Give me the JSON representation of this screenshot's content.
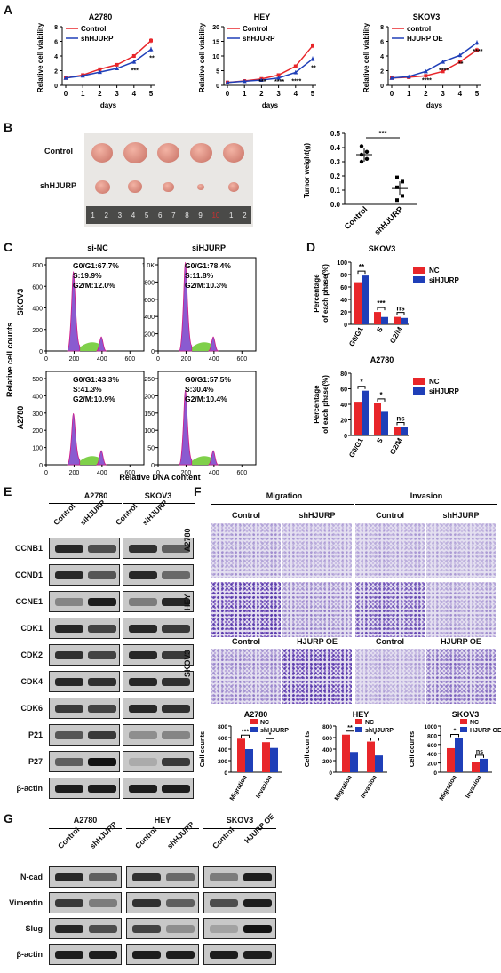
{
  "panels": {
    "a": "A",
    "b": "B",
    "c": "C",
    "d": "D",
    "e": "E",
    "f": "F",
    "g": "G"
  },
  "panel_a": {
    "ylabel": "Relative cell viability",
    "xlabel": "days",
    "x_ticks": [
      "0",
      "1",
      "2",
      "3",
      "4",
      "5"
    ],
    "y_ticks": [
      "0",
      "2",
      "4",
      "6",
      "8"
    ],
    "y_ticks_hey": [
      "0",
      "5",
      "10",
      "15",
      "20"
    ],
    "charts": [
      {
        "title": "A2780",
        "legend": [
          "Control",
          "shHJURP"
        ],
        "sig": [
          "***",
          "**"
        ]
      },
      {
        "title": "HEY",
        "legend": [
          "Control",
          "shHJURP"
        ],
        "sig": [
          "***",
          "****",
          "****",
          "**"
        ]
      },
      {
        "title": "SKOV3",
        "legend": [
          "control",
          "HJURP OE"
        ],
        "sig": [
          "****",
          "****",
          "**",
          "****"
        ]
      }
    ]
  },
  "panel_b": {
    "row_labels": [
      "Control",
      "shHJURP"
    ],
    "ruler": [
      "1",
      "2",
      "3",
      "4",
      "5",
      "6",
      "7",
      "8",
      "9",
      "10",
      "1",
      "2"
    ],
    "ylabel": "Tumor weight(g)",
    "y_ticks": [
      "0.0",
      "0.1",
      "0.2",
      "0.3",
      "0.4",
      "0.5"
    ],
    "categories": [
      "Control",
      "shHJURP"
    ],
    "sig": "***"
  },
  "panel_c": {
    "cols": [
      "si-NC",
      "siHJURP"
    ],
    "rows": [
      "SKOV3",
      "A2780"
    ],
    "ylabel": "Relative cell counts",
    "xlabel": "Relative DNA content",
    "x_ticks": [
      "0",
      "200",
      "400",
      "600"
    ],
    "y_ticks": [
      [
        "0",
        "200",
        "400",
        "600",
        "800"
      ],
      [
        "0",
        "200",
        "400",
        "600",
        "800",
        "1.0K"
      ],
      [
        "0",
        "100",
        "200",
        "300",
        "400",
        "500"
      ],
      [
        "0",
        "50",
        "100",
        "150",
        "200",
        "250"
      ]
    ],
    "stats": [
      [
        "G0/G1:67.7%",
        "S:19.9%",
        "G2/M:12.0%"
      ],
      [
        "G0/G1:78.4%",
        "S:11.8%",
        "G2/M:10.3%"
      ],
      [
        "G0/G1:43.3%",
        "S:41.3%",
        "G2/M:10.9%"
      ],
      [
        "G0/G1:57.5%",
        "S:30.4%",
        "G2/M:10.4%"
      ]
    ]
  },
  "panel_d": {
    "ylabel1": "Percentage",
    "ylabel2": "of each phase(%)",
    "legend": [
      "NC",
      "siHJURP"
    ],
    "categories": [
      "G0/G1",
      "S",
      "G2/M"
    ],
    "charts": [
      {
        "title": "SKOV3",
        "y_ticks": [
          "0",
          "20",
          "40",
          "60",
          "80",
          "100"
        ],
        "sig": [
          "**",
          "***",
          "ns"
        ]
      },
      {
        "title": "A2780",
        "y_ticks": [
          "0",
          "20",
          "40",
          "60",
          "80"
        ],
        "sig": [
          "*",
          "*",
          "ns"
        ]
      }
    ]
  },
  "panel_e": {
    "groups": [
      "A2780",
      "SKOV3"
    ],
    "lanes": [
      "Control",
      "siHJURP",
      "Control",
      "siHJURP"
    ],
    "proteins": [
      "CCNB1",
      "CCND1",
      "CCNE1",
      "CDK1",
      "CDK2",
      "CDK4",
      "CDK6",
      "P21",
      "P27",
      "β-actin"
    ]
  },
  "panel_f": {
    "sections": [
      "Migration",
      "Invasion"
    ],
    "col_labels_top": [
      "Control",
      "shHJURP",
      "Control",
      "shHJURP"
    ],
    "col_labels_bottom": [
      "Control",
      "HJURP OE",
      "Control",
      "HJURP OE"
    ],
    "row_labels": [
      "A2780",
      "HEY",
      "SKOV3"
    ],
    "ylabel": "Cell counts",
    "categories": [
      "Migration",
      "Invasion"
    ],
    "charts": [
      {
        "title": "A2780",
        "legend": [
          "NC",
          "shHJURP"
        ],
        "y_ticks": [
          "0",
          "200",
          "400",
          "600",
          "800"
        ],
        "sig": [
          "***",
          "*"
        ]
      },
      {
        "title": "HEY",
        "legend": [
          "NC",
          "shHJURP"
        ],
        "y_ticks": [
          "0",
          "200",
          "400",
          "600",
          "800"
        ],
        "sig": [
          "**",
          "*"
        ]
      },
      {
        "title": "SKOV3",
        "legend": [
          "NC",
          "HJURP OE"
        ],
        "y_ticks": [
          "0",
          "200",
          "400",
          "600",
          "800",
          "1000"
        ],
        "sig": [
          "*",
          "ns"
        ]
      }
    ]
  },
  "panel_g": {
    "groups": [
      "A2780",
      "HEY",
      "SKOV3"
    ],
    "lanes": [
      "Control",
      "shHJURP",
      "Control",
      "shHJURP",
      "Control",
      "HJURP OE"
    ],
    "proteins": [
      "N-cad",
      "Vimentin",
      "Slug",
      "β-actin"
    ]
  },
  "colors": {
    "control": "#e8262a",
    "treated": "#1f3fb8",
    "purple": "#8a5bd0",
    "green": "#7fd04a"
  },
  "chart_data": [
    {
      "type": "line",
      "title": "A2780",
      "xlabel": "days",
      "ylabel": "Relative cell viability",
      "x": [
        0,
        1,
        2,
        3,
        4,
        5
      ],
      "ylim": [
        0,
        8
      ],
      "series": [
        {
          "name": "Control",
          "values": [
            1.0,
            1.4,
            2.2,
            2.8,
            4.0,
            6.1
          ]
        },
        {
          "name": "shHJURP",
          "values": [
            1.0,
            1.3,
            1.8,
            2.3,
            3.2,
            4.9
          ]
        }
      ]
    },
    {
      "type": "line",
      "title": "HEY",
      "xlabel": "days",
      "ylabel": "Relative cell viability",
      "x": [
        0,
        1,
        2,
        3,
        4,
        5
      ],
      "ylim": [
        0,
        20
      ],
      "series": [
        {
          "name": "Control",
          "values": [
            1.0,
            1.5,
            2.2,
            3.5,
            6.5,
            13.5
          ]
        },
        {
          "name": "shHJURP",
          "values": [
            1.0,
            1.4,
            1.8,
            2.5,
            4.4,
            9.0
          ]
        }
      ]
    },
    {
      "type": "line",
      "title": "SKOV3",
      "xlabel": "days",
      "ylabel": "Relative cell viability",
      "x": [
        0,
        1,
        2,
        3,
        4,
        5
      ],
      "ylim": [
        0,
        8
      ],
      "series": [
        {
          "name": "control",
          "values": [
            1.0,
            1.1,
            1.3,
            1.9,
            3.2,
            4.8
          ]
        },
        {
          "name": "HJURP OE",
          "values": [
            1.0,
            1.2,
            1.9,
            3.2,
            4.1,
            5.8
          ]
        }
      ]
    },
    {
      "type": "scatter",
      "ylabel": "Tumor weight(g)",
      "categories": [
        "Control",
        "shHJURP"
      ],
      "ylim": [
        0,
        0.5
      ],
      "series": [
        {
          "name": "Control",
          "values": [
            0.41,
            0.37,
            0.35,
            0.32,
            0.3
          ]
        },
        {
          "name": "shHJURP",
          "values": [
            0.19,
            0.16,
            0.12,
            0.06,
            0.03
          ]
        }
      ]
    },
    {
      "type": "bar",
      "title": "SKOV3",
      "ylabel": "Percentage of each phase(%)",
      "categories": [
        "G0/G1",
        "S",
        "G2/M"
      ],
      "ylim": [
        0,
        100
      ],
      "series": [
        {
          "name": "NC",
          "values": [
            67.7,
            19.9,
            12.0
          ]
        },
        {
          "name": "siHJURP",
          "values": [
            78.4,
            11.8,
            10.3
          ]
        }
      ]
    },
    {
      "type": "bar",
      "title": "A2780",
      "ylabel": "Percentage of each phase(%)",
      "categories": [
        "G0/G1",
        "S",
        "G2/M"
      ],
      "ylim": [
        0,
        80
      ],
      "series": [
        {
          "name": "NC",
          "values": [
            43.3,
            41.3,
            10.9
          ]
        },
        {
          "name": "siHJURP",
          "values": [
            57.5,
            30.4,
            10.4
          ]
        }
      ]
    },
    {
      "type": "bar",
      "title": "A2780",
      "ylabel": "Cell counts",
      "categories": [
        "Migration",
        "Invasion"
      ],
      "ylim": [
        0,
        800
      ],
      "series": [
        {
          "name": "NC",
          "values": [
            580,
            520
          ]
        },
        {
          "name": "shHJURP",
          "values": [
            400,
            420
          ]
        }
      ]
    },
    {
      "type": "bar",
      "title": "HEY",
      "ylabel": "Cell counts",
      "categories": [
        "Migration",
        "Invasion"
      ],
      "ylim": [
        0,
        800
      ],
      "series": [
        {
          "name": "NC",
          "values": [
            650,
            530
          ]
        },
        {
          "name": "shHJURP",
          "values": [
            350,
            290
          ]
        }
      ]
    },
    {
      "type": "bar",
      "title": "SKOV3",
      "ylabel": "Cell counts",
      "categories": [
        "Migration",
        "Invasion"
      ],
      "ylim": [
        0,
        1000
      ],
      "series": [
        {
          "name": "NC",
          "values": [
            520,
            230
          ]
        },
        {
          "name": "HJURP OE",
          "values": [
            740,
            290
          ]
        }
      ]
    }
  ]
}
